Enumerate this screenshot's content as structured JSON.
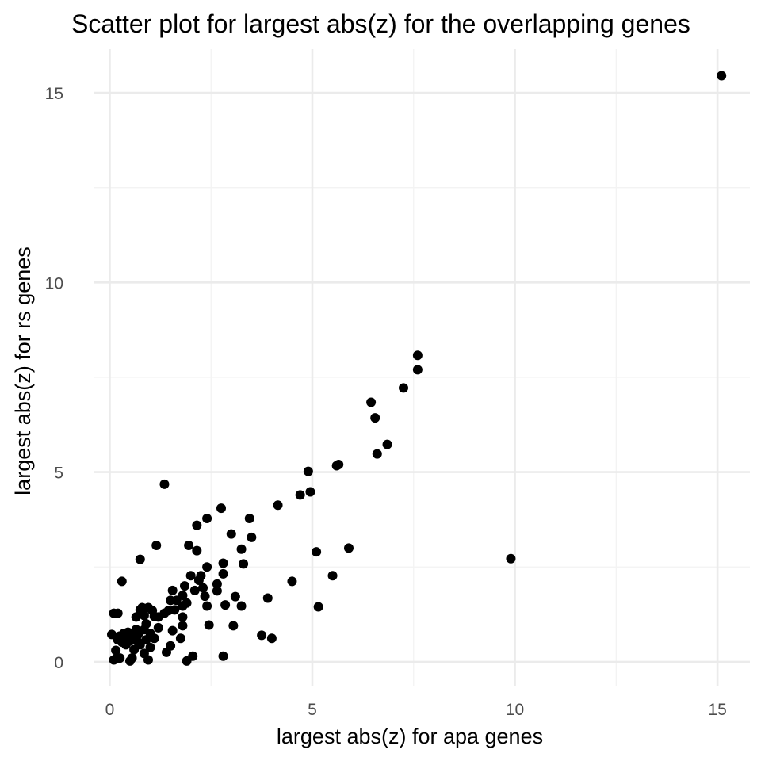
{
  "chart_data": {
    "type": "scatter",
    "title": "Scatter plot for largest abs(z) for the overlapping genes",
    "xlabel": "largest abs(z) for apa genes",
    "ylabel": "largest abs(z) for rs genes",
    "xlim": [
      -0.4,
      15.8
    ],
    "ylim": [
      -0.65,
      16.15
    ],
    "xticks": [
      0,
      5,
      10,
      15
    ],
    "yticks": [
      0,
      5,
      10,
      15
    ],
    "xtick_labels": [
      "0",
      "5",
      "10",
      "15"
    ],
    "ytick_labels": [
      "0",
      "5",
      "10",
      "15"
    ],
    "grid": true,
    "theme": "minimal",
    "point_color": "#000000",
    "points": [
      [
        15.1,
        15.45
      ],
      [
        9.9,
        2.72
      ],
      [
        7.6,
        8.08
      ],
      [
        7.6,
        7.7
      ],
      [
        7.25,
        7.22
      ],
      [
        6.85,
        5.73
      ],
      [
        6.6,
        5.48
      ],
      [
        6.55,
        6.43
      ],
      [
        6.45,
        6.84
      ],
      [
        5.9,
        3.0
      ],
      [
        5.65,
        5.2
      ],
      [
        5.6,
        5.17
      ],
      [
        5.5,
        2.27
      ],
      [
        5.15,
        1.45
      ],
      [
        5.1,
        2.9
      ],
      [
        4.95,
        4.48
      ],
      [
        4.9,
        5.02
      ],
      [
        4.7,
        4.4
      ],
      [
        4.5,
        2.12
      ],
      [
        4.15,
        4.13
      ],
      [
        4.0,
        0.62
      ],
      [
        3.9,
        1.68
      ],
      [
        3.75,
        0.7
      ],
      [
        3.5,
        3.28
      ],
      [
        3.45,
        3.78
      ],
      [
        3.3,
        2.58
      ],
      [
        3.25,
        2.97
      ],
      [
        3.25,
        1.47
      ],
      [
        3.1,
        1.72
      ],
      [
        3.05,
        0.95
      ],
      [
        3.0,
        3.37
      ],
      [
        2.85,
        1.5
      ],
      [
        2.8,
        2.32
      ],
      [
        2.8,
        2.6
      ],
      [
        2.8,
        0.15
      ],
      [
        2.75,
        4.05
      ],
      [
        2.65,
        1.87
      ],
      [
        2.65,
        2.05
      ],
      [
        2.45,
        0.97
      ],
      [
        2.4,
        3.78
      ],
      [
        2.4,
        2.5
      ],
      [
        2.4,
        1.47
      ],
      [
        2.35,
        1.73
      ],
      [
        2.3,
        1.95
      ],
      [
        2.25,
        2.27
      ],
      [
        2.2,
        2.15
      ],
      [
        2.15,
        3.6
      ],
      [
        2.15,
        2.93
      ],
      [
        2.1,
        1.88
      ],
      [
        2.05,
        0.15
      ],
      [
        2.0,
        2.27
      ],
      [
        1.95,
        3.07
      ],
      [
        1.9,
        1.55
      ],
      [
        1.9,
        0.02
      ],
      [
        1.85,
        2.0
      ],
      [
        1.8,
        1.75
      ],
      [
        1.8,
        1.47
      ],
      [
        1.8,
        1.18
      ],
      [
        1.8,
        0.95
      ],
      [
        1.75,
        0.62
      ],
      [
        1.65,
        1.62
      ],
      [
        1.6,
        1.37
      ],
      [
        1.55,
        1.88
      ],
      [
        1.55,
        0.82
      ],
      [
        1.5,
        1.62
      ],
      [
        1.5,
        0.42
      ],
      [
        1.45,
        1.35
      ],
      [
        1.4,
        0.25
      ],
      [
        1.35,
        4.68
      ],
      [
        1.35,
        1.28
      ],
      [
        1.2,
        0.9
      ],
      [
        1.2,
        1.18
      ],
      [
        1.15,
        3.07
      ],
      [
        1.1,
        0.62
      ],
      [
        1.1,
        1.2
      ],
      [
        1.05,
        1.35
      ],
      [
        1.0,
        0.38
      ],
      [
        1.0,
        0.75
      ],
      [
        0.95,
        1.43
      ],
      [
        0.95,
        0.05
      ],
      [
        0.9,
        1.0
      ],
      [
        0.9,
        0.58
      ],
      [
        0.85,
        0.22
      ],
      [
        0.85,
        1.22
      ],
      [
        0.85,
        0.85
      ],
      [
        0.8,
        1.43
      ],
      [
        0.75,
        2.7
      ],
      [
        0.75,
        1.37
      ],
      [
        0.75,
        1.27
      ],
      [
        0.75,
        0.45
      ],
      [
        0.7,
        0.72
      ],
      [
        0.7,
        0.52
      ],
      [
        0.65,
        1.18
      ],
      [
        0.65,
        0.85
      ],
      [
        0.65,
        0.58
      ],
      [
        0.6,
        0.32
      ],
      [
        0.55,
        0.68
      ],
      [
        0.55,
        0.1
      ],
      [
        0.5,
        0.55
      ],
      [
        0.5,
        0.02
      ],
      [
        0.45,
        0.78
      ],
      [
        0.45,
        0.6
      ],
      [
        0.4,
        0.45
      ],
      [
        0.35,
        0.75
      ],
      [
        0.35,
        0.6
      ],
      [
        0.3,
        2.12
      ],
      [
        0.3,
        0.52
      ],
      [
        0.25,
        0.68
      ],
      [
        0.25,
        0.1
      ],
      [
        0.2,
        1.28
      ],
      [
        0.2,
        0.58
      ],
      [
        0.15,
        0.3
      ],
      [
        0.15,
        0.08
      ],
      [
        0.1,
        1.28
      ],
      [
        0.1,
        0.05
      ],
      [
        0.05,
        0.72
      ]
    ]
  }
}
